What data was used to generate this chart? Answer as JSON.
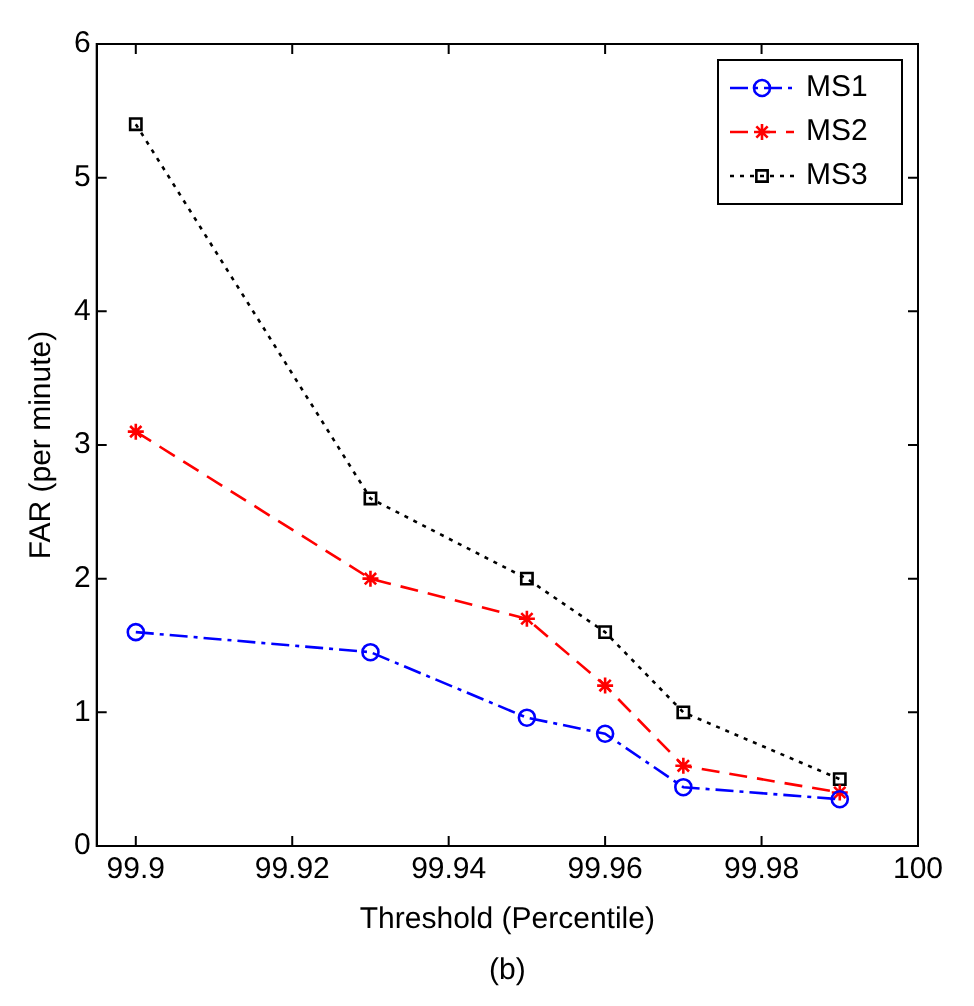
{
  "chart_data": {
    "type": "line",
    "xlabel": "Threshold (Percentile)",
    "ylabel": "FAR (per minute)",
    "annotations": [
      "(b)"
    ],
    "x": [
      99.9,
      99.93,
      99.95,
      99.96,
      99.97,
      99.99
    ],
    "series": [
      {
        "name": "MS1",
        "color": "#0000ff",
        "marker": "circle",
        "line_style": "dashdot",
        "values": [
          1.6,
          1.45,
          0.96,
          0.84,
          0.44,
          0.35
        ]
      },
      {
        "name": "MS2",
        "color": "#ff0000",
        "marker": "cross",
        "line_style": "dashed",
        "values": [
          3.1,
          2.0,
          1.7,
          1.2,
          0.6,
          0.4
        ]
      },
      {
        "name": "MS3",
        "color": "#000000",
        "marker": "square",
        "line_style": "dotted",
        "values": [
          5.4,
          2.6,
          2.0,
          1.6,
          1.0,
          0.5
        ]
      }
    ],
    "xlim": [
      99.895,
      100
    ],
    "xticks": [
      99.9,
      99.92,
      99.94,
      99.96,
      99.98,
      100
    ],
    "ylim": [
      0,
      6
    ],
    "yticks": [
      0,
      1,
      2,
      3,
      4,
      5,
      6
    ],
    "grid": false,
    "legend": "top right"
  }
}
